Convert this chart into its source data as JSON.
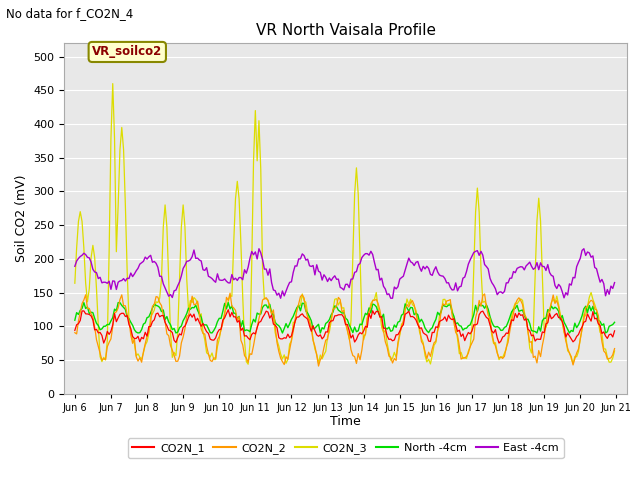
{
  "title": "VR North Vaisala Profile",
  "subtitle": "No data for f_CO2N_4",
  "ylabel": "Soil CO2 (mV)",
  "xlabel": "Time",
  "ylim": [
    0,
    520
  ],
  "yticks": [
    0,
    50,
    100,
    150,
    200,
    250,
    300,
    350,
    400,
    450,
    500
  ],
  "xtick_labels": [
    "Jun 6",
    "Jun 7",
    "Jun 8",
    "Jun 9",
    "Jun 10",
    "Jun 11",
    "Jun 12",
    "Jun 13",
    "Jun 14",
    "Jun 15",
    "Jun 16",
    "Jun 17",
    "Jun 18",
    "Jun 19",
    "Jun 20",
    "Jun 21"
  ],
  "xtick_positions": [
    6,
    7,
    8,
    9,
    10,
    11,
    12,
    13,
    14,
    15,
    16,
    17,
    18,
    19,
    20,
    21
  ],
  "annotation_text": "VR_soilco2",
  "colors": {
    "CO2N_1": "#ff0000",
    "CO2N_2": "#ff9900",
    "CO2N_3": "#dddd00",
    "North": "#00dd00",
    "East": "#aa00cc"
  },
  "legend_labels": [
    "CO2N_1",
    "CO2N_2",
    "CO2N_3",
    "North -4cm",
    "East -4cm"
  ],
  "legend_colors": [
    "#ff0000",
    "#ff9900",
    "#dddd00",
    "#00dd00",
    "#aa00cc"
  ],
  "fig_bg": "#ffffff",
  "plot_bg": "#e8e8e8"
}
